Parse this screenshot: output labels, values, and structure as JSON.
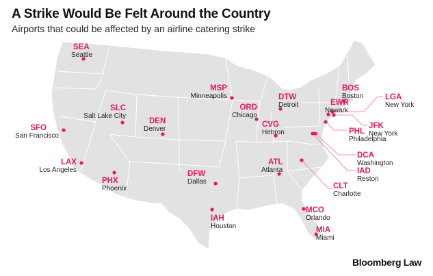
{
  "title": "A Strike Would Be Felt Around the Country",
  "subtitle": "Airports that could be affected by an airline catering strike",
  "logo": "Bloomberg Law",
  "colors": {
    "accent": "#e8175d",
    "land": "#e2e2e2",
    "borders": "#ffffff"
  },
  "airports": [
    {
      "code": "SEA",
      "city": "Seattle"
    },
    {
      "code": "SFO",
      "city": "San Francisco"
    },
    {
      "code": "LAX",
      "city": "Los Angeles"
    },
    {
      "code": "PHX",
      "city": "Phoenix"
    },
    {
      "code": "SLC",
      "city": "Salt Lake City"
    },
    {
      "code": "DEN",
      "city": "Denver"
    },
    {
      "code": "MSP",
      "city": "Minneapolis"
    },
    {
      "code": "ORD",
      "city": "Chicago"
    },
    {
      "code": "DTW",
      "city": "Detroit"
    },
    {
      "code": "CVG",
      "city": "Hebron"
    },
    {
      "code": "DFW",
      "city": "Dallas"
    },
    {
      "code": "IAH",
      "city": "Houston"
    },
    {
      "code": "ATL",
      "city": "Atlanta"
    },
    {
      "code": "MCO",
      "city": "Orlando"
    },
    {
      "code": "MIA",
      "city": "Miami"
    },
    {
      "code": "CLT",
      "city": "Charlotte"
    },
    {
      "code": "EWR",
      "city": "Newark"
    },
    {
      "code": "BOS",
      "city": "Boston"
    },
    {
      "code": "LGA",
      "city": "New York"
    },
    {
      "code": "JFK",
      "city": "New York"
    },
    {
      "code": "PHL",
      "city": "Philadelphia"
    },
    {
      "code": "DCA",
      "city": "Washington"
    },
    {
      "code": "IAD",
      "city": "Reston"
    }
  ]
}
